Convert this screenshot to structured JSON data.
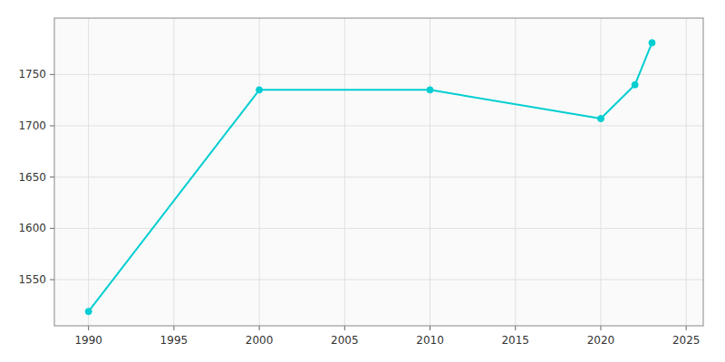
{
  "chart_data": {
    "type": "line",
    "x": [
      1990,
      2000,
      2010,
      2020,
      2022,
      2023
    ],
    "values": [
      1519,
      1735,
      1735,
      1707,
      1740,
      1781
    ],
    "color": "#00CED1",
    "marker": "circle",
    "xlim": [
      1988,
      2026
    ],
    "ylim": [
      1505,
      1805
    ],
    "xticks": [
      1990,
      1995,
      2000,
      2005,
      2010,
      2015,
      2020,
      2025
    ],
    "yticks": [
      1550,
      1600,
      1650,
      1700,
      1750
    ],
    "grid": true
  }
}
